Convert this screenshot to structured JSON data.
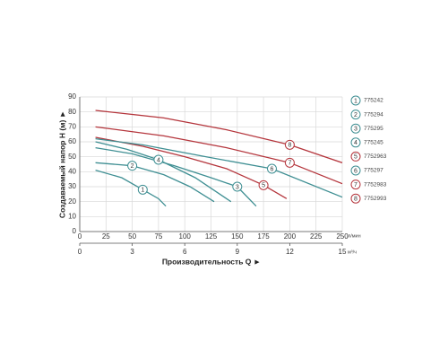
{
  "chart_data": {
    "type": "line",
    "xlabel": "Производительность Q ►",
    "ylabel": "Создаваемый напор H (м) ►",
    "xlim": [
      0,
      250
    ],
    "xticks": [
      0,
      25,
      50,
      75,
      100,
      125,
      150,
      175,
      200,
      225,
      250
    ],
    "x_unit": "л/мин",
    "x2lim": [
      0,
      15
    ],
    "x2ticks": [
      0,
      3,
      6,
      9,
      12,
      15
    ],
    "x2_unit": "м³/ч",
    "ylim": [
      0,
      90
    ],
    "yticks": [
      0,
      10,
      20,
      30,
      40,
      50,
      60,
      70,
      80,
      90
    ],
    "grid": true,
    "series": [
      {
        "name": "775242",
        "marker": "1",
        "color": "#3f8f93",
        "x": [
          15,
          40,
          60,
          75,
          82
        ],
        "values": [
          41,
          36,
          28,
          22,
          17
        ]
      },
      {
        "name": "775294",
        "marker": "2",
        "color": "#3f8f93",
        "x": [
          15,
          50,
          80,
          105,
          128
        ],
        "values": [
          46,
          44,
          38,
          30,
          20
        ]
      },
      {
        "name": "775295",
        "marker": "3",
        "color": "#3f8f93",
        "x": [
          15,
          50,
          90,
          125,
          150,
          168
        ],
        "values": [
          56,
          52,
          44,
          36,
          30,
          17
        ]
      },
      {
        "name": "775245",
        "marker": "4",
        "color": "#3f8f93",
        "x": [
          15,
          45,
          75,
          110,
          144
        ],
        "values": [
          60,
          55,
          48,
          36,
          20
        ]
      },
      {
        "name": "7752963",
        "marker": "5",
        "color": "#b5363d",
        "x": [
          15,
          60,
          100,
          140,
          175,
          197
        ],
        "values": [
          63,
          57,
          50,
          42,
          31,
          22
        ]
      },
      {
        "name": "775297",
        "marker": "6",
        "color": "#3f8f93",
        "x": [
          15,
          60,
          120,
          183,
          250
        ],
        "values": [
          62,
          58,
          50,
          42,
          23
        ]
      },
      {
        "name": "7752983",
        "marker": "7",
        "color": "#b5363d",
        "x": [
          15,
          80,
          140,
          200,
          250
        ],
        "values": [
          70,
          64,
          56,
          46,
          32
        ]
      },
      {
        "name": "7752993",
        "marker": "8",
        "color": "#b5363d",
        "x": [
          15,
          80,
          140,
          200,
          250
        ],
        "values": [
          81,
          76,
          68,
          58,
          46
        ]
      }
    ]
  }
}
